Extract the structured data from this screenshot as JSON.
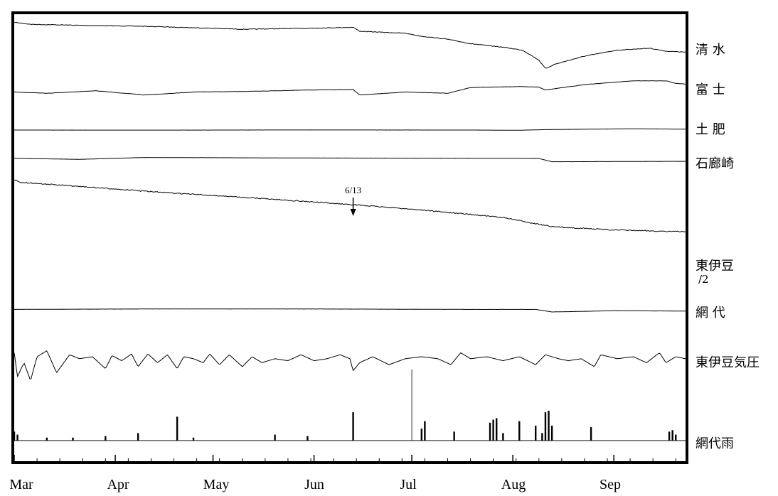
{
  "chart_data": {
    "type": "line",
    "title": "",
    "xlabel": "",
    "ylabel": "",
    "grid": false,
    "x_ticks": [
      "Mar",
      "Apr",
      "May",
      "Jun",
      "Jul",
      "Aug",
      "Sep"
    ],
    "annotation": {
      "text": "6/13",
      "x": "Jun 13",
      "series": "東伊豆"
    },
    "series": [
      {
        "name": "清 水",
        "kind": "line",
        "values": [
          [
            0,
            0.02
          ],
          [
            5,
            0.06
          ],
          [
            20,
            0.08
          ],
          [
            40,
            0.1
          ],
          [
            61,
            0.14
          ],
          [
            70,
            0.16
          ],
          [
            90,
            0.14
          ],
          [
            104,
            0.12
          ],
          [
            106,
            0.2
          ],
          [
            120,
            0.24
          ],
          [
            125,
            0.3
          ],
          [
            133,
            0.36
          ],
          [
            140,
            0.45
          ],
          [
            150,
            0.52
          ],
          [
            156,
            0.58
          ],
          [
            161,
            0.78
          ],
          [
            163,
            0.95
          ],
          [
            166,
            0.86
          ],
          [
            175,
            0.7
          ],
          [
            185,
            0.58
          ],
          [
            195,
            0.54
          ],
          [
            200,
            0.6
          ],
          [
            206,
            0.62
          ]
        ]
      },
      {
        "name": "富 士",
        "kind": "line",
        "values": [
          [
            0,
            0.5
          ],
          [
            10,
            0.55
          ],
          [
            25,
            0.45
          ],
          [
            40,
            0.62
          ],
          [
            55,
            0.5
          ],
          [
            70,
            0.48
          ],
          [
            90,
            0.42
          ],
          [
            104,
            0.4
          ],
          [
            106,
            0.62
          ],
          [
            120,
            0.5
          ],
          [
            133,
            0.55
          ],
          [
            140,
            0.32
          ],
          [
            155,
            0.28
          ],
          [
            161,
            0.3
          ],
          [
            163,
            0.42
          ],
          [
            175,
            0.2
          ],
          [
            190,
            0.05
          ],
          [
            200,
            0.05
          ],
          [
            203,
            0.15
          ],
          [
            206,
            0.18
          ]
        ]
      },
      {
        "name": "土 肥",
        "kind": "line",
        "values": [
          [
            0,
            0.5
          ],
          [
            40,
            0.52
          ],
          [
            90,
            0.48
          ],
          [
            140,
            0.5
          ],
          [
            155,
            0.55
          ],
          [
            163,
            0.4
          ],
          [
            190,
            0.2
          ],
          [
            206,
            0.3
          ]
        ]
      },
      {
        "name": "石廊崎",
        "kind": "line",
        "values": [
          [
            0,
            0.4
          ],
          [
            20,
            0.52
          ],
          [
            40,
            0.3
          ],
          [
            80,
            0.35
          ],
          [
            120,
            0.38
          ],
          [
            155,
            0.4
          ],
          [
            161,
            0.42
          ],
          [
            165,
            0.8
          ],
          [
            180,
            0.78
          ],
          [
            206,
            0.75
          ]
        ]
      },
      {
        "name": "東伊豆/2",
        "kind": "line",
        "values": [
          [
            0,
            0.0
          ],
          [
            2,
            0.03
          ],
          [
            20,
            0.08
          ],
          [
            45,
            0.15
          ],
          [
            75,
            0.22
          ],
          [
            105,
            0.3
          ],
          [
            125,
            0.36
          ],
          [
            150,
            0.45
          ],
          [
            165,
            0.56
          ],
          [
            185,
            0.6
          ],
          [
            206,
            0.62
          ]
        ]
      },
      {
        "name": "網 代",
        "kind": "line",
        "values": [
          [
            0,
            0.45
          ],
          [
            40,
            0.4
          ],
          [
            90,
            0.4
          ],
          [
            140,
            0.45
          ],
          [
            160,
            0.45
          ],
          [
            165,
            0.75
          ],
          [
            185,
            0.6
          ],
          [
            206,
            0.65
          ]
        ]
      },
      {
        "name": "東伊豆気圧",
        "kind": "pressure",
        "values": [
          [
            0,
            0.15
          ],
          [
            1,
            0.75
          ],
          [
            3,
            0.4
          ],
          [
            5,
            0.85
          ],
          [
            7,
            0.25
          ],
          [
            10,
            0.1
          ],
          [
            13,
            0.65
          ],
          [
            17,
            0.2
          ],
          [
            20,
            0.3
          ],
          [
            24,
            0.25
          ],
          [
            28,
            0.55
          ],
          [
            30,
            0.22
          ],
          [
            33,
            0.35
          ],
          [
            36,
            0.18
          ],
          [
            38,
            0.5
          ],
          [
            41,
            0.18
          ],
          [
            44,
            0.4
          ],
          [
            47,
            0.2
          ],
          [
            50,
            0.55
          ],
          [
            52,
            0.25
          ],
          [
            55,
            0.3
          ],
          [
            58,
            0.4
          ],
          [
            60,
            0.18
          ],
          [
            63,
            0.45
          ],
          [
            66,
            0.2
          ],
          [
            70,
            0.5
          ],
          [
            73,
            0.25
          ],
          [
            76,
            0.4
          ],
          [
            80,
            0.3
          ],
          [
            84,
            0.35
          ],
          [
            88,
            0.2
          ],
          [
            92,
            0.35
          ],
          [
            96,
            0.3
          ],
          [
            100,
            0.2
          ],
          [
            103,
            0.3
          ],
          [
            104,
            0.6
          ],
          [
            106,
            0.4
          ],
          [
            110,
            0.25
          ],
          [
            115,
            0.45
          ],
          [
            120,
            0.3
          ],
          [
            125,
            0.25
          ],
          [
            130,
            0.3
          ],
          [
            134,
            0.45
          ],
          [
            137,
            0.15
          ],
          [
            140,
            0.3
          ],
          [
            145,
            0.25
          ],
          [
            150,
            0.35
          ],
          [
            155,
            0.25
          ],
          [
            160,
            0.45
          ],
          [
            163,
            0.2
          ],
          [
            167,
            0.3
          ],
          [
            170,
            0.35
          ],
          [
            174,
            0.3
          ],
          [
            178,
            0.5
          ],
          [
            180,
            0.2
          ],
          [
            185,
            0.3
          ],
          [
            190,
            0.25
          ],
          [
            194,
            0.4
          ],
          [
            198,
            0.15
          ],
          [
            200,
            0.4
          ],
          [
            203,
            0.25
          ],
          [
            206,
            0.3
          ]
        ]
      },
      {
        "name": "網代雨",
        "kind": "bars",
        "values": [
          [
            0,
            0.3
          ],
          [
            1,
            0.2
          ],
          [
            10,
            0.1
          ],
          [
            18,
            0.1
          ],
          [
            28,
            0.15
          ],
          [
            38,
            0.25
          ],
          [
            50,
            0.8
          ],
          [
            55,
            0.1
          ],
          [
            80,
            0.2
          ],
          [
            90,
            0.15
          ],
          [
            104,
            0.95
          ],
          [
            125,
            0.4
          ],
          [
            126,
            0.65
          ],
          [
            135,
            0.3
          ],
          [
            146,
            0.6
          ],
          [
            147,
            0.7
          ],
          [
            148,
            0.75
          ],
          [
            150,
            0.25
          ],
          [
            155,
            0.65
          ],
          [
            160,
            0.5
          ],
          [
            162,
            0.25
          ],
          [
            163,
            0.95
          ],
          [
            164,
            1.0
          ],
          [
            165,
            0.5
          ],
          [
            177,
            0.45
          ],
          [
            201,
            0.3
          ],
          [
            202,
            0.35
          ],
          [
            203,
            0.2
          ]
        ]
      }
    ]
  },
  "jul_spike_day": 122
}
